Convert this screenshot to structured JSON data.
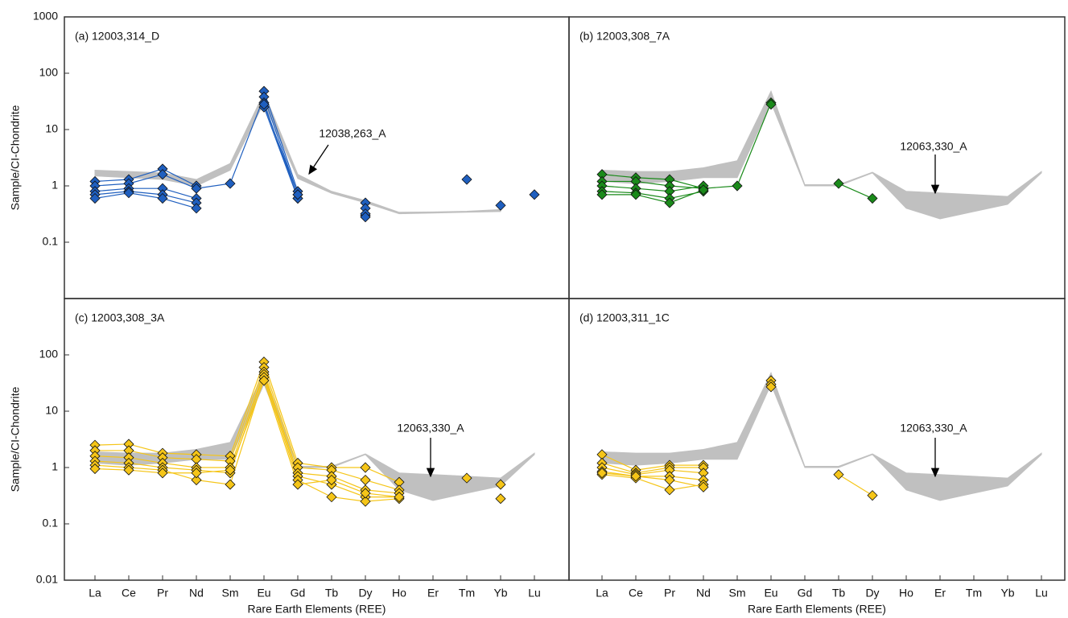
{
  "chart_data": [
    {
      "type": "line",
      "title": "(a) 12003,314_D",
      "ylabel": "Sample/CI-Chondrite",
      "log": true,
      "ylim": [
        0.01,
        1000
      ],
      "yticks": [
        0.1,
        1,
        10,
        100,
        1000
      ],
      "band": {
        "name": "12038,263_A",
        "color": "#c0c0c0",
        "lower": [
          1.5,
          1.4,
          1.3,
          1.0,
          1.9,
          30,
          1.35,
          0.74,
          0.5,
          0.32,
          0.33,
          0.34,
          0.35,
          null
        ],
        "upper": [
          1.9,
          1.8,
          1.7,
          1.3,
          2.5,
          45,
          1.6,
          0.8,
          0.55,
          0.34,
          0.345,
          0.355,
          0.38,
          null
        ]
      },
      "series": [
        {
          "color": "#1f5fbf",
          "values": [
            1.2,
            1.3,
            2.0,
            1.0,
            null,
            48,
            0.8,
            null,
            0.5,
            null,
            null,
            null,
            0.45,
            null
          ]
        },
        {
          "color": "#1f5fbf",
          "values": [
            1.0,
            1.1,
            1.6,
            0.9,
            1.1,
            38,
            0.7,
            null,
            0.4,
            null,
            null,
            null,
            null,
            null
          ]
        },
        {
          "color": "#1f5fbf",
          "values": [
            0.8,
            0.9,
            0.9,
            0.6,
            null,
            30,
            0.6,
            null,
            0.3,
            null,
            null,
            null,
            null,
            null
          ]
        },
        {
          "color": "#1f5fbf",
          "values": [
            0.7,
            0.8,
            0.7,
            0.5,
            null,
            25,
            0.6,
            null,
            0.32,
            null,
            null,
            null,
            null,
            null
          ]
        },
        {
          "color": "#1f5fbf",
          "values": [
            0.6,
            0.75,
            0.6,
            0.4,
            null,
            28,
            0.7,
            null,
            0.28,
            null,
            null,
            null,
            null,
            null
          ]
        },
        {
          "color": "#1f5fbf",
          "values": [
            null,
            null,
            null,
            null,
            null,
            null,
            null,
            null,
            null,
            null,
            null,
            1.3,
            null,
            0.7
          ]
        }
      ]
    },
    {
      "type": "line",
      "title": "(b) 12003,308_7A",
      "log": true,
      "ylim": [
        0.01,
        1000
      ],
      "band": {
        "name": "12063,330_A",
        "color": "#c0c0c0",
        "lower": [
          1.2,
          1.1,
          1.2,
          1.4,
          1.4,
          30,
          1.0,
          1.0,
          1.7,
          0.4,
          0.26,
          0.35,
          0.47,
          1.7
        ],
        "upper": [
          1.9,
          1.8,
          1.8,
          2.1,
          2.8,
          48,
          1.05,
          1.05,
          1.75,
          0.8,
          0.75,
          0.7,
          0.65,
          1.8
        ]
      },
      "series": [
        {
          "color": "#1a8a1a",
          "values": [
            1.6,
            1.4,
            1.3,
            0.9,
            1.0,
            30,
            null,
            1.1,
            0.6,
            null,
            null,
            null,
            null,
            null
          ]
        },
        {
          "color": "#1a8a1a",
          "values": [
            1.2,
            1.2,
            1.0,
            0.9,
            null,
            null,
            null,
            null,
            null,
            null,
            null,
            null,
            null,
            null
          ]
        },
        {
          "color": "#1a8a1a",
          "values": [
            1.0,
            0.9,
            0.8,
            1.0,
            null,
            null,
            null,
            null,
            null,
            null,
            null,
            null,
            null,
            null
          ]
        },
        {
          "color": "#1a8a1a",
          "values": [
            0.8,
            0.75,
            0.6,
            0.8,
            null,
            null,
            null,
            null,
            null,
            null,
            null,
            null,
            null,
            null
          ]
        },
        {
          "color": "#1a8a1a",
          "values": [
            0.7,
            0.7,
            0.5,
            0.85,
            null,
            28,
            null,
            null,
            null,
            null,
            null,
            null,
            null,
            null
          ]
        }
      ]
    },
    {
      "type": "line",
      "title": "(c) 12003,308_3A",
      "ylabel": "Sample/CI-Chondrite",
      "xlabel": "Rare Earth Elements (REE)",
      "log": true,
      "categories": [
        "La",
        "Ce",
        "Pr",
        "Nd",
        "Sm",
        "Eu",
        "Gd",
        "Tb",
        "Dy",
        "Ho",
        "Er",
        "Tm",
        "Yb",
        "Lu"
      ],
      "ylim": [
        0.01,
        1000
      ],
      "yticks": [
        0.01,
        0.1,
        1,
        10,
        100
      ],
      "band": {
        "name": "12063,330_A",
        "color": "#c0c0c0",
        "lower": [
          1.2,
          1.1,
          1.2,
          1.4,
          1.4,
          30,
          1.0,
          1.0,
          1.7,
          0.4,
          0.26,
          0.35,
          0.47,
          1.7
        ],
        "upper": [
          1.9,
          1.8,
          1.8,
          2.1,
          2.8,
          48,
          1.05,
          1.05,
          1.75,
          0.8,
          0.75,
          0.7,
          0.65,
          1.8
        ]
      },
      "series": [
        {
          "color": "#f5c518",
          "values": [
            2.5,
            2.6,
            1.8,
            1.7,
            1.6,
            75,
            1.2,
            1.0,
            1.0,
            0.55,
            null,
            0.65,
            null,
            null
          ]
        },
        {
          "color": "#f5c518",
          "values": [
            2.0,
            2.0,
            1.5,
            1.4,
            1.3,
            60,
            1.0,
            0.9,
            0.6,
            0.4,
            null,
            null,
            0.5,
            null
          ]
        },
        {
          "color": "#f5c518",
          "values": [
            1.6,
            1.5,
            1.2,
            1.0,
            1.0,
            50,
            0.8,
            0.7,
            0.4,
            0.35,
            null,
            null,
            0.28,
            null
          ]
        },
        {
          "color": "#f5c518",
          "values": [
            1.3,
            1.2,
            1.0,
            0.9,
            0.8,
            45,
            0.7,
            0.5,
            0.3,
            0.3,
            null,
            null,
            null,
            null
          ]
        },
        {
          "color": "#f5c518",
          "values": [
            1.1,
            1.0,
            0.9,
            0.6,
            0.5,
            40,
            0.6,
            0.3,
            0.25,
            0.28,
            null,
            null,
            null,
            null
          ]
        },
        {
          "color": "#f5c518",
          "values": [
            0.95,
            0.9,
            0.8,
            0.8,
            0.9,
            35,
            0.5,
            0.6,
            0.35,
            0.3,
            null,
            null,
            null,
            null
          ]
        }
      ]
    },
    {
      "type": "line",
      "title": "(d) 12003,311_1C",
      "xlabel": "Rare Earth Elements (REE)",
      "log": true,
      "categories": [
        "La",
        "Ce",
        "Pr",
        "Nd",
        "Sm",
        "Eu",
        "Gd",
        "Tb",
        "Dy",
        "Ho",
        "Er",
        "Tm",
        "Yb",
        "Lu"
      ],
      "ylim": [
        0.01,
        1000
      ],
      "band": {
        "name": "12063,330_A",
        "color": "#c0c0c0",
        "lower": [
          1.2,
          1.1,
          1.2,
          1.4,
          1.4,
          30,
          1.0,
          1.0,
          1.7,
          0.4,
          0.26,
          0.35,
          0.47,
          1.7
        ],
        "upper": [
          1.9,
          1.8,
          1.8,
          2.1,
          2.8,
          48,
          1.05,
          1.05,
          1.75,
          0.8,
          0.75,
          0.7,
          0.65,
          1.8
        ]
      },
      "series": [
        {
          "color": "#f5c518",
          "values": [
            1.7,
            0.9,
            1.1,
            1.1,
            null,
            35,
            null,
            0.75,
            0.32,
            null,
            null,
            null,
            null,
            null
          ]
        },
        {
          "color": "#f5c518",
          "values": [
            1.2,
            0.8,
            1.0,
            1.0,
            null,
            30,
            null,
            null,
            null,
            null,
            null,
            null,
            null,
            null
          ]
        },
        {
          "color": "#f5c518",
          "values": [
            1.0,
            0.75,
            0.9,
            0.8,
            null,
            27,
            null,
            null,
            null,
            null,
            null,
            null,
            null,
            null
          ]
        },
        {
          "color": "#f5c518",
          "values": [
            0.85,
            0.7,
            0.7,
            0.6,
            null,
            null,
            null,
            null,
            null,
            null,
            null,
            null,
            null,
            null
          ]
        },
        {
          "color": "#f5c518",
          "values": [
            0.75,
            0.65,
            0.4,
            0.5,
            null,
            null,
            null,
            null,
            null,
            null,
            null,
            null,
            null,
            null
          ]
        },
        {
          "color": "#f5c518",
          "values": [
            0.8,
            0.7,
            0.6,
            0.45,
            null,
            null,
            null,
            null,
            null,
            null,
            null,
            null,
            null,
            null
          ]
        }
      ]
    }
  ]
}
